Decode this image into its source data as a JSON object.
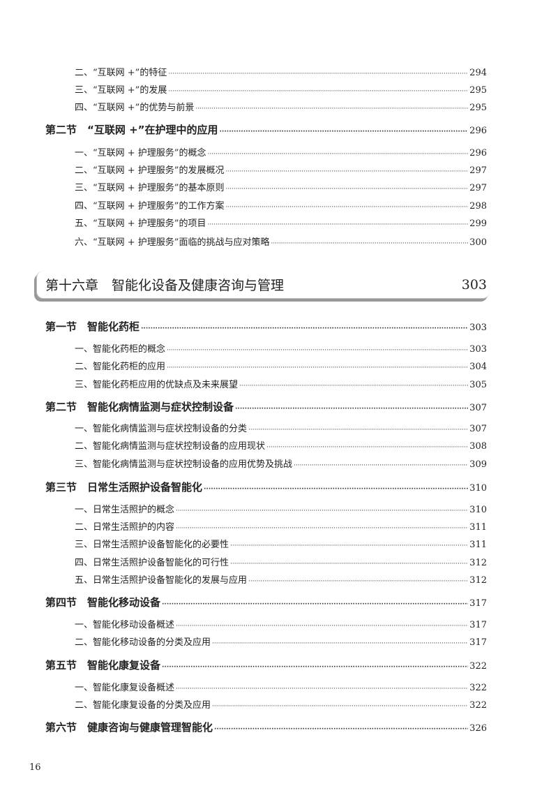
{
  "entries": [
    {
      "level": "sub",
      "title": "二、“互联网 +”的特征",
      "page": "294"
    },
    {
      "level": "sub",
      "title": "三、“互联网 +”的发展",
      "page": "295"
    },
    {
      "level": "sub",
      "title": "四、“互联网 +”的优势与前景",
      "page": "295"
    },
    {
      "level": "sec",
      "title": "第二节　“互联网 +”在护理中的应用",
      "page": "296"
    },
    {
      "level": "sub",
      "title": "一、“互联网 + 护理服务”的概念",
      "page": "296"
    },
    {
      "level": "sub",
      "title": "二、“互联网 + 护理服务”的发展概况",
      "page": "297"
    },
    {
      "level": "sub",
      "title": "三、“互联网 + 护理服务”的基本原则",
      "page": "297"
    },
    {
      "level": "sub",
      "title": "四、“互联网 + 护理服务”的工作方案",
      "page": "298"
    },
    {
      "level": "sub",
      "title": "五、“互联网 + 护理服务”的项目",
      "page": "299"
    },
    {
      "level": "sub",
      "title": "六、“互联网 + 护理服务”面临的挑战与应对策略",
      "page": "300"
    },
    {
      "level": "chapter",
      "title": "第十六章　智能化设备及健康咨询与管理",
      "page": "303"
    },
    {
      "level": "sec",
      "title": "第一节　智能化药柜",
      "page": "303"
    },
    {
      "level": "sub",
      "title": "一、智能化药柜的概念",
      "page": "303"
    },
    {
      "level": "sub",
      "title": "二、智能化药柜的应用",
      "page": "304"
    },
    {
      "level": "sub",
      "title": "三、智能化药柜应用的优缺点及未来展望",
      "page": "305"
    },
    {
      "level": "sec",
      "title": "第二节　智能化病情监测与症状控制设备",
      "page": "307"
    },
    {
      "level": "sub",
      "title": "一、智能化病情监测与症状控制设备的分类",
      "page": "307"
    },
    {
      "level": "sub",
      "title": "二、智能化病情监测与症状控制设备的应用现状",
      "page": "308"
    },
    {
      "level": "sub",
      "title": "三、智能化病情监测与症状控制设备的应用优势及挑战",
      "page": "309"
    },
    {
      "level": "sec",
      "title": "第三节　日常生活照护设备智能化",
      "page": "310"
    },
    {
      "level": "sub",
      "title": "一、日常生活照护的概念",
      "page": "310"
    },
    {
      "level": "sub",
      "title": "二、日常生活照护的内容",
      "page": "311"
    },
    {
      "level": "sub",
      "title": "三、日常生活照护设备智能化的必要性",
      "page": "311"
    },
    {
      "level": "sub",
      "title": "四、日常生活照护设备智能化的可行性",
      "page": "312"
    },
    {
      "level": "sub",
      "title": "五、日常生活照护设备智能化的发展与应用",
      "page": "312"
    },
    {
      "level": "sec",
      "title": "第四节　智能化移动设备",
      "page": "317"
    },
    {
      "level": "sub",
      "title": "一、智能化移动设备概述",
      "page": "317"
    },
    {
      "level": "sub",
      "title": "二、智能化移动设备的分类及应用",
      "page": "317"
    },
    {
      "level": "sec",
      "title": "第五节　智能化康复设备",
      "page": "322"
    },
    {
      "level": "sub",
      "title": "一、智能化康复设备概述",
      "page": "322"
    },
    {
      "level": "sub",
      "title": "二、智能化康复设备的分类及应用",
      "page": "322"
    },
    {
      "level": "sec",
      "title": "第六节　健康咨询与健康管理智能化",
      "page": "326"
    }
  ],
  "page_number": "16"
}
